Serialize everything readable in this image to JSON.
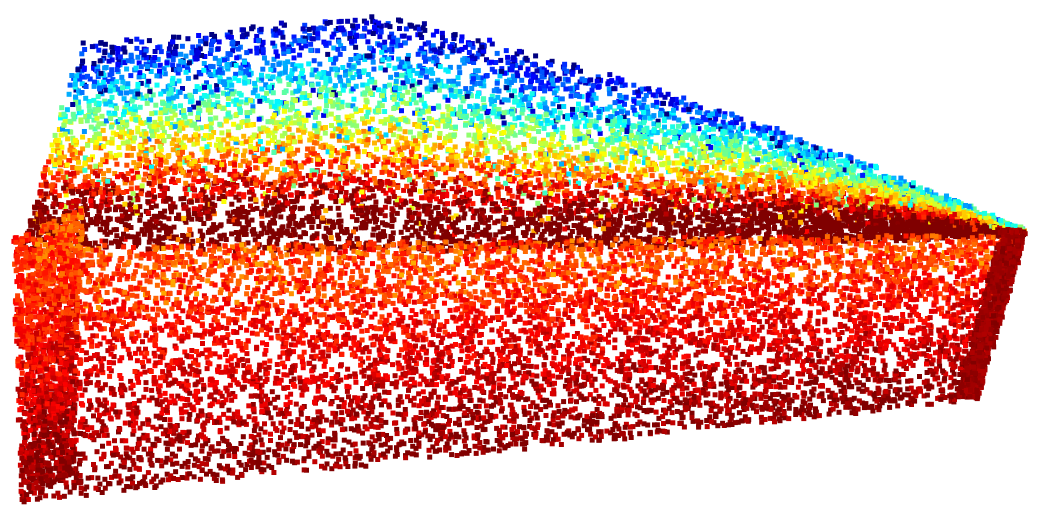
{
  "scene": {
    "colormap": "jet",
    "background": "#ffffff",
    "point_glyph": "square",
    "faces": [
      {
        "name": "top-surface",
        "gradient": "blue-to-red"
      },
      {
        "name": "left-wall",
        "gradient": "orange-to-darkred"
      },
      {
        "name": "front-face",
        "gradient": "red-to-darkred"
      }
    ]
  }
}
